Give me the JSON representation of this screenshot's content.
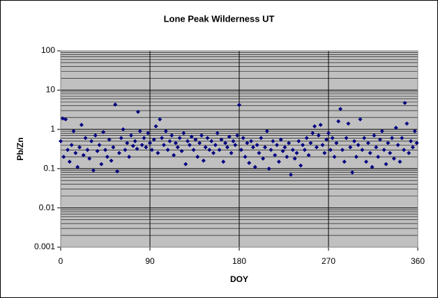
{
  "chart_data": {
    "type": "scatter",
    "title": "Lone Peak Wilderness UT",
    "x_label": "DOY",
    "y_label": "Pb/Zn",
    "xlim": [
      0,
      360
    ],
    "xticks": [
      0,
      90,
      180,
      270,
      360
    ],
    "ylim": [
      0.001,
      100
    ],
    "yticks": [
      0.001,
      0.01,
      0.1,
      1,
      10,
      100
    ],
    "y_log": true,
    "grid": true,
    "minor_grid": true,
    "series": [
      {
        "color": "#000080",
        "x": [
          0,
          2,
          3,
          5,
          7,
          9,
          11,
          13,
          15,
          17,
          19,
          21,
          23,
          25,
          27,
          29,
          31,
          33,
          35,
          37,
          39,
          41,
          43,
          45,
          47,
          49,
          51,
          53,
          55,
          57,
          59,
          61,
          63,
          65,
          67,
          69,
          71,
          73,
          75,
          77,
          78,
          80,
          82,
          84,
          86,
          88,
          90,
          92,
          94,
          96,
          98,
          100,
          102,
          104,
          106,
          108,
          110,
          112,
          114,
          116,
          118,
          120,
          122,
          124,
          126,
          128,
          130,
          132,
          134,
          136,
          138,
          140,
          142,
          144,
          146,
          148,
          150,
          152,
          154,
          156,
          158,
          160,
          162,
          164,
          166,
          168,
          170,
          172,
          174,
          176,
          178,
          180,
          182,
          184,
          186,
          188,
          190,
          192,
          194,
          196,
          198,
          200,
          202,
          204,
          206,
          208,
          210,
          212,
          214,
          216,
          218,
          220,
          222,
          224,
          226,
          228,
          230,
          232,
          234,
          236,
          238,
          240,
          242,
          244,
          246,
          248,
          250,
          252,
          254,
          256,
          258,
          260,
          262,
          264,
          266,
          268,
          270,
          272,
          274,
          276,
          278,
          280,
          282,
          284,
          286,
          288,
          290,
          292,
          294,
          296,
          298,
          300,
          302,
          304,
          306,
          308,
          310,
          312,
          314,
          316,
          318,
          320,
          322,
          324,
          326,
          328,
          330,
          332,
          334,
          336,
          338,
          340,
          342,
          344,
          346,
          347,
          349,
          351,
          353,
          355,
          357,
          359
        ],
        "values": [
          0.5,
          1.9,
          0.2,
          1.8,
          0.3,
          0.15,
          0.4,
          0.9,
          0.25,
          0.11,
          0.35,
          1.3,
          0.22,
          0.6,
          0.3,
          0.18,
          0.5,
          0.09,
          0.7,
          0.28,
          0.4,
          0.13,
          0.85,
          0.3,
          0.2,
          0.55,
          0.16,
          0.35,
          4.3,
          0.085,
          0.25,
          0.6,
          1.0,
          0.3,
          0.45,
          0.2,
          0.7,
          0.38,
          0.5,
          0.32,
          2.8,
          0.9,
          0.4,
          0.6,
          0.35,
          0.8,
          0.45,
          0.3,
          0.55,
          1.2,
          0.25,
          1.8,
          0.6,
          0.4,
          0.9,
          0.3,
          0.5,
          0.7,
          0.22,
          0.45,
          0.35,
          0.6,
          0.28,
          0.8,
          0.13,
          0.5,
          0.4,
          0.65,
          0.3,
          0.55,
          0.2,
          0.45,
          0.7,
          0.16,
          0.35,
          0.6,
          0.3,
          0.5,
          0.25,
          0.4,
          0.8,
          0.3,
          0.55,
          0.15,
          0.45,
          0.35,
          0.65,
          0.25,
          0.5,
          0.4,
          0.7,
          4.2,
          0.3,
          0.6,
          0.2,
          0.45,
          0.14,
          0.5,
          0.35,
          0.11,
          0.4,
          0.25,
          0.6,
          0.18,
          0.35,
          0.9,
          0.1,
          0.3,
          0.5,
          0.22,
          0.4,
          0.15,
          0.55,
          0.28,
          0.35,
          0.2,
          0.45,
          0.07,
          0.3,
          0.18,
          0.25,
          0.5,
          0.12,
          0.4,
          0.3,
          0.6,
          0.22,
          0.45,
          0.8,
          1.2,
          0.35,
          0.7,
          1.3,
          0.4,
          0.25,
          0.55,
          0.8,
          0.3,
          0.6,
          0.2,
          0.45,
          1.6,
          3.3,
          0.3,
          0.15,
          0.6,
          1.4,
          0.35,
          0.08,
          0.5,
          0.2,
          0.4,
          1.8,
          0.3,
          0.6,
          0.15,
          0.45,
          0.25,
          0.11,
          0.7,
          0.35,
          0.2,
          0.55,
          0.9,
          0.3,
          0.13,
          0.45,
          0.25,
          0.6,
          0.18,
          1.1,
          0.4,
          0.15,
          0.6,
          0.3,
          4.7,
          1.4,
          0.25,
          0.5,
          0.35,
          0.9,
          0.45
        ]
      }
    ]
  }
}
